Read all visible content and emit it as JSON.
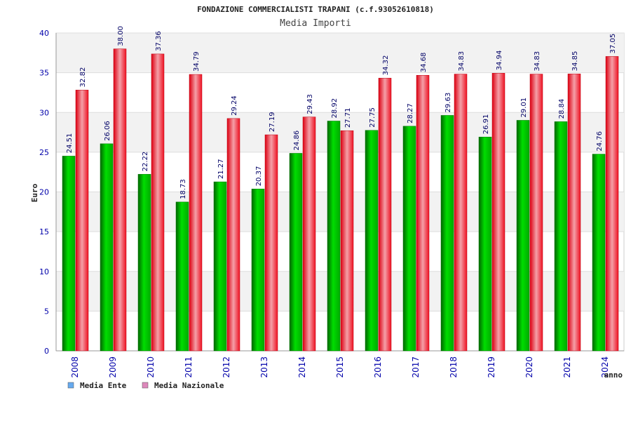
{
  "chart_data": {
    "type": "bar",
    "title": "FONDAZIONE COMMERCIALISTI TRAPANI (c.f.93052610818)",
    "subtitle": "Media Importi",
    "xlabel": "anno",
    "ylabel": "Euro",
    "ylim": [
      0,
      40
    ],
    "yticks": [
      0,
      5,
      10,
      15,
      20,
      25,
      30,
      35,
      40
    ],
    "grid": true,
    "legend_position": "bottom-left",
    "categories": [
      "2008",
      "2009",
      "2010",
      "2011",
      "2012",
      "2013",
      "2014",
      "2015",
      "2016",
      "2017",
      "2018",
      "2019",
      "2020",
      "2021",
      "2024"
    ],
    "series": [
      {
        "name": "Media Ente",
        "color": "#00aa00",
        "legend_color": "#66aaee",
        "values": [
          24.51,
          26.06,
          22.22,
          18.73,
          21.27,
          20.37,
          24.86,
          28.92,
          27.75,
          28.27,
          29.63,
          26.91,
          29.01,
          28.84,
          24.76
        ],
        "labels": [
          "24.51",
          "26.06",
          "22.22",
          "18.73",
          "21.27",
          "20.37",
          "24.86",
          "28.92",
          "27.75",
          "28.27",
          "29.63",
          "26.91",
          "29.01",
          "28.84",
          "24.76"
        ]
      },
      {
        "name": "Media Nazionale",
        "color": "#ee2233",
        "legend_color": "#dd88bb",
        "values": [
          32.82,
          38.0,
          37.36,
          34.79,
          29.24,
          27.19,
          29.43,
          27.71,
          34.32,
          34.68,
          34.83,
          34.94,
          34.83,
          34.85,
          37.05
        ],
        "labels": [
          "32.82",
          "38.00",
          "37.36",
          "34.79",
          "29.24",
          "27.19",
          "29.43",
          "27.71",
          "34.32",
          "34.68",
          "34.83",
          "34.94",
          "34.83",
          "34.85",
          "37.05"
        ]
      }
    ]
  }
}
